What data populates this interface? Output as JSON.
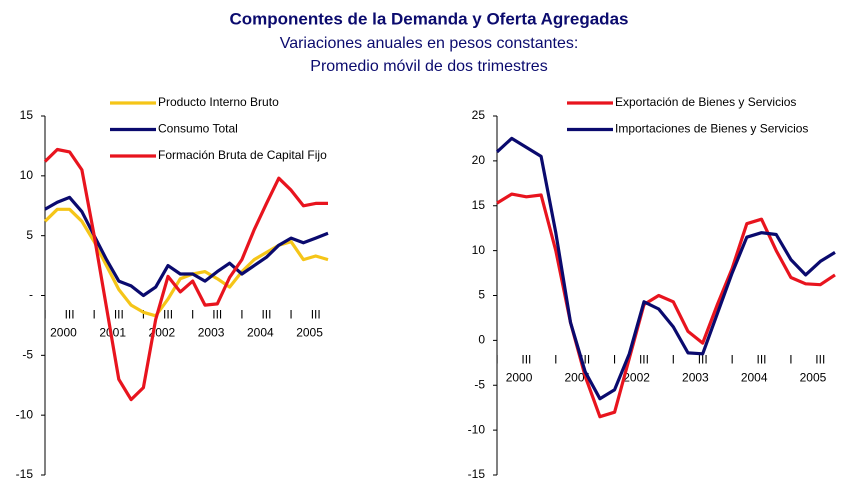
{
  "title": "Componentes de la Demanda y Oferta Agregadas",
  "subtitle": [
    "Variaciones anuales en pesos constantes:",
    "Promedio móvil de dos trimestres"
  ],
  "chart_data": [
    {
      "type": "line",
      "categories": [
        "I",
        null,
        "III",
        null,
        "I",
        null,
        "III",
        null,
        "I",
        null,
        "III",
        null,
        "I",
        null,
        "III",
        null,
        "I",
        null,
        "III",
        null,
        "I",
        null,
        "III",
        null
      ],
      "years": [
        "2000",
        "2001",
        "2002",
        "2003",
        "2004",
        "2005"
      ],
      "ylim": [
        -15,
        15
      ],
      "yticks": [
        -15,
        -10,
        -5,
        {
          "value": 0,
          "label": "-"
        },
        5,
        10,
        15
      ],
      "series": [
        {
          "name": "Producto Interno Bruto",
          "color": "#f5c518",
          "values": [
            6.2,
            7.2,
            7.2,
            6.2,
            4.5,
            2.5,
            0.5,
            -0.8,
            -1.4,
            -1.7,
            -0.3,
            1.4,
            1.8,
            2,
            1.4,
            0.7,
            2,
            3,
            3.6,
            4.2,
            4.5,
            3.0,
            3.3,
            3.0
          ]
        },
        {
          "name": "Consumo Total",
          "color": "#0a0a6e",
          "values": [
            7.2,
            7.8,
            8.2,
            7,
            5,
            3,
            1.2,
            0.8,
            0,
            0.7,
            2.5,
            1.8,
            1.8,
            1.2,
            2,
            2.7,
            1.8,
            2.5,
            3.2,
            4.2,
            4.8,
            4.4,
            4.8,
            5.2
          ]
        },
        {
          "name": "Formación Bruta de Capital Fijo",
          "color": "#e8141e",
          "values": [
            11.2,
            12.2,
            12,
            10.5,
            5,
            -1,
            -7,
            -8.7,
            -7.7,
            -2,
            1.6,
            0.3,
            1.2,
            -0.8,
            -0.7,
            1.5,
            3,
            5.5,
            7.7,
            9.8,
            8.8,
            7.5,
            7.7,
            7.7
          ]
        }
      ]
    },
    {
      "type": "line",
      "categories": [
        "I",
        null,
        "III",
        null,
        "I",
        null,
        "III",
        null,
        "I",
        null,
        "III",
        null,
        "I",
        null,
        "III",
        null,
        "I",
        null,
        "III",
        null,
        "I",
        null,
        "III",
        null
      ],
      "years": [
        "2000",
        "2001",
        "2002",
        "2003",
        "2004",
        "2005"
      ],
      "ylim": [
        -15,
        25
      ],
      "yticks": [
        -15,
        -10,
        -5,
        0,
        5,
        10,
        15,
        20,
        25
      ],
      "series": [
        {
          "name": "Exportación de Bienes y Servicios",
          "color": "#e8141e",
          "values": [
            15.3,
            16.3,
            16,
            16.2,
            10,
            2,
            -4,
            -8.5,
            -8,
            -2,
            4,
            5,
            4.3,
            1,
            -0.3,
            4,
            8,
            13,
            13.5,
            10,
            7,
            6.3,
            6.2,
            7.3
          ]
        },
        {
          "name": "Importaciones de Bienes y Servicios",
          "color": "#0a0a6e",
          "values": [
            21,
            22.5,
            21.5,
            20.5,
            12,
            2,
            -3.5,
            -6.5,
            -5.5,
            -1.5,
            4.3,
            3.5,
            1.5,
            -1.4,
            -1.5,
            3,
            7.5,
            11.5,
            12,
            11.8,
            9,
            7.3,
            8.8,
            9.8
          ]
        }
      ]
    }
  ]
}
